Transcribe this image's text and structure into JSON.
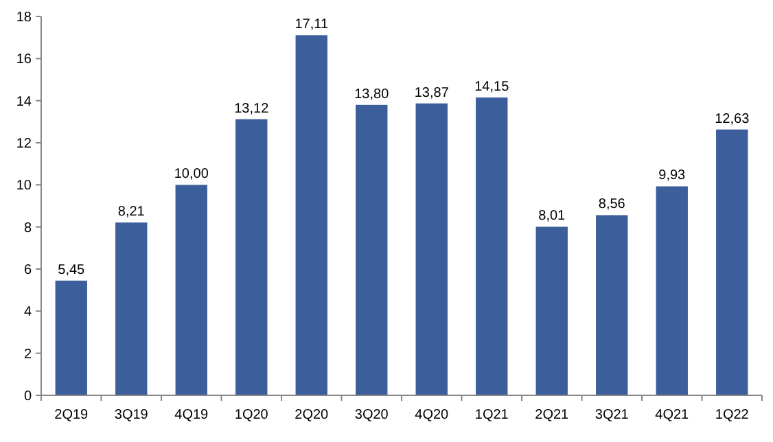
{
  "chart_data": {
    "type": "bar",
    "categories": [
      "2Q19",
      "3Q19",
      "4Q19",
      "1Q20",
      "2Q20",
      "3Q20",
      "4Q20",
      "1Q21",
      "2Q21",
      "3Q21",
      "4Q21",
      "1Q22"
    ],
    "values": [
      5.45,
      8.21,
      10.0,
      13.12,
      17.11,
      13.8,
      13.87,
      14.15,
      8.01,
      8.56,
      9.93,
      12.63
    ],
    "value_labels": [
      "5,45",
      "8,21",
      "10,00",
      "13,12",
      "17,11",
      "13,80",
      "13,87",
      "14,15",
      "8,01",
      "8,56",
      "9,93",
      "12,63"
    ],
    "color": "#3c5f9b",
    "ylim": [
      0,
      18
    ],
    "yticks": [
      0,
      2,
      4,
      6,
      8,
      10,
      12,
      14,
      16,
      18
    ],
    "grid": false
  }
}
